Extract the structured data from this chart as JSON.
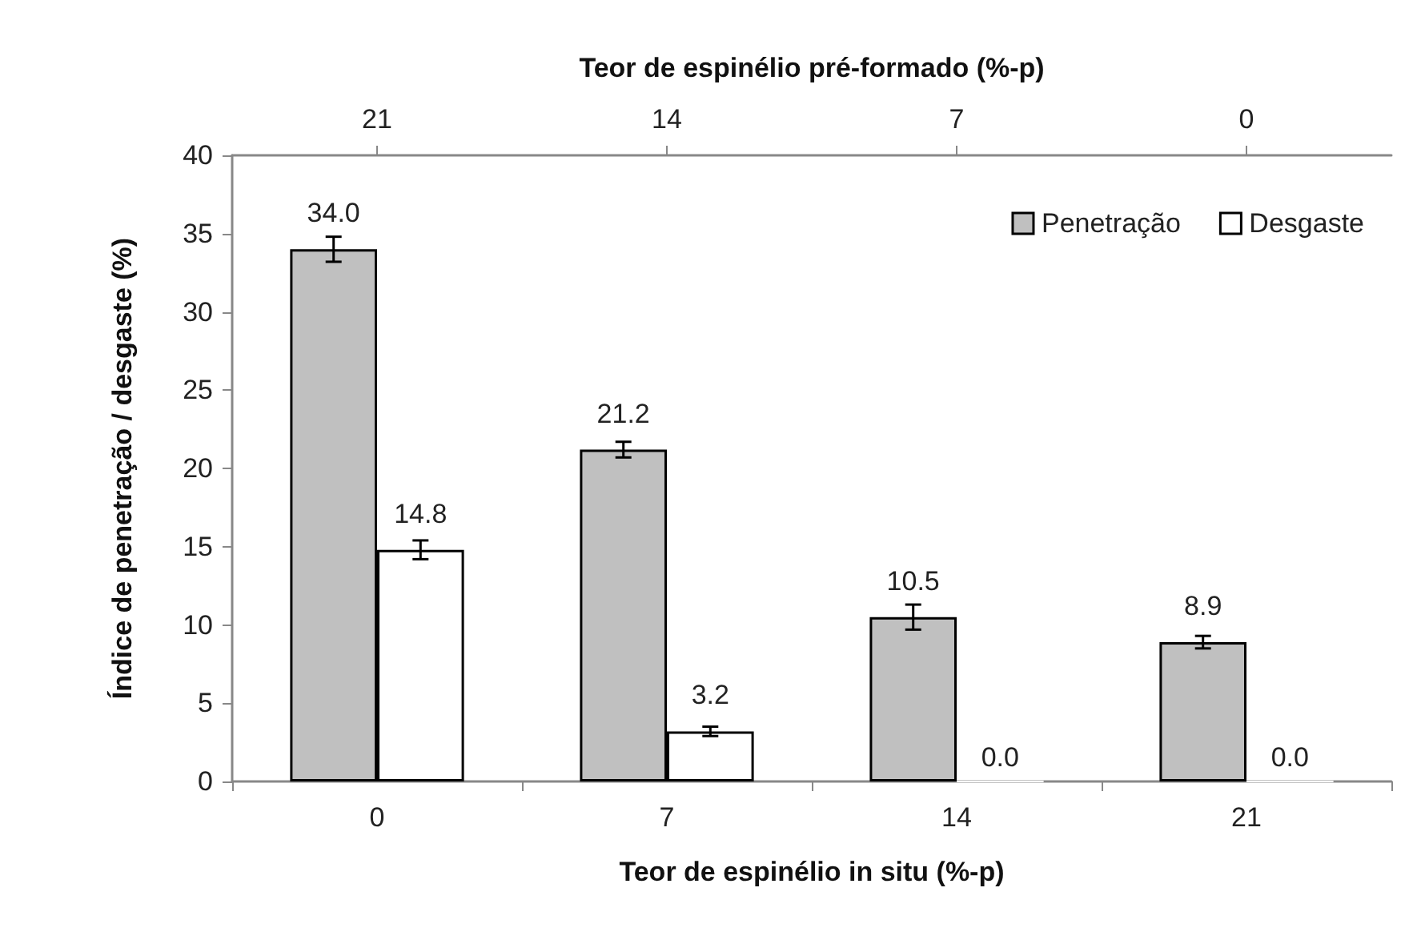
{
  "chart_data": {
    "type": "bar",
    "xlabel": "Teor de espinélio in situ (%-p)",
    "x2label": "Teor de espinélio pré-formado (%-p)",
    "ylabel": "Índice de penetração / desgaste (%)",
    "categories": [
      "0",
      "7",
      "14",
      "21"
    ],
    "x2lim": [
      24.5,
      -3.5
    ],
    "x2ticks": [
      21,
      14,
      7,
      0
    ],
    "series": [
      {
        "name": "Penetração",
        "color": "#c0c0c0",
        "values": [
          34.0,
          21.2,
          10.5,
          8.9
        ],
        "value_labels": [
          "34.0",
          "21.2",
          "10.5",
          "8.9"
        ],
        "errors": [
          0.8,
          0.5,
          0.8,
          0.4
        ]
      },
      {
        "name": "Desgaste",
        "color": "#ffffff",
        "values": [
          14.8,
          3.2,
          0.0,
          0.0
        ],
        "value_labels": [
          "14.8",
          "3.2",
          "0.0",
          "0.0"
        ],
        "errors": [
          0.6,
          0.3,
          null,
          null
        ]
      }
    ],
    "ylim": [
      0,
      40
    ],
    "yticks": [
      0,
      5,
      10,
      15,
      20,
      25,
      30,
      35,
      40
    ],
    "grid": false,
    "legend": "top right"
  }
}
